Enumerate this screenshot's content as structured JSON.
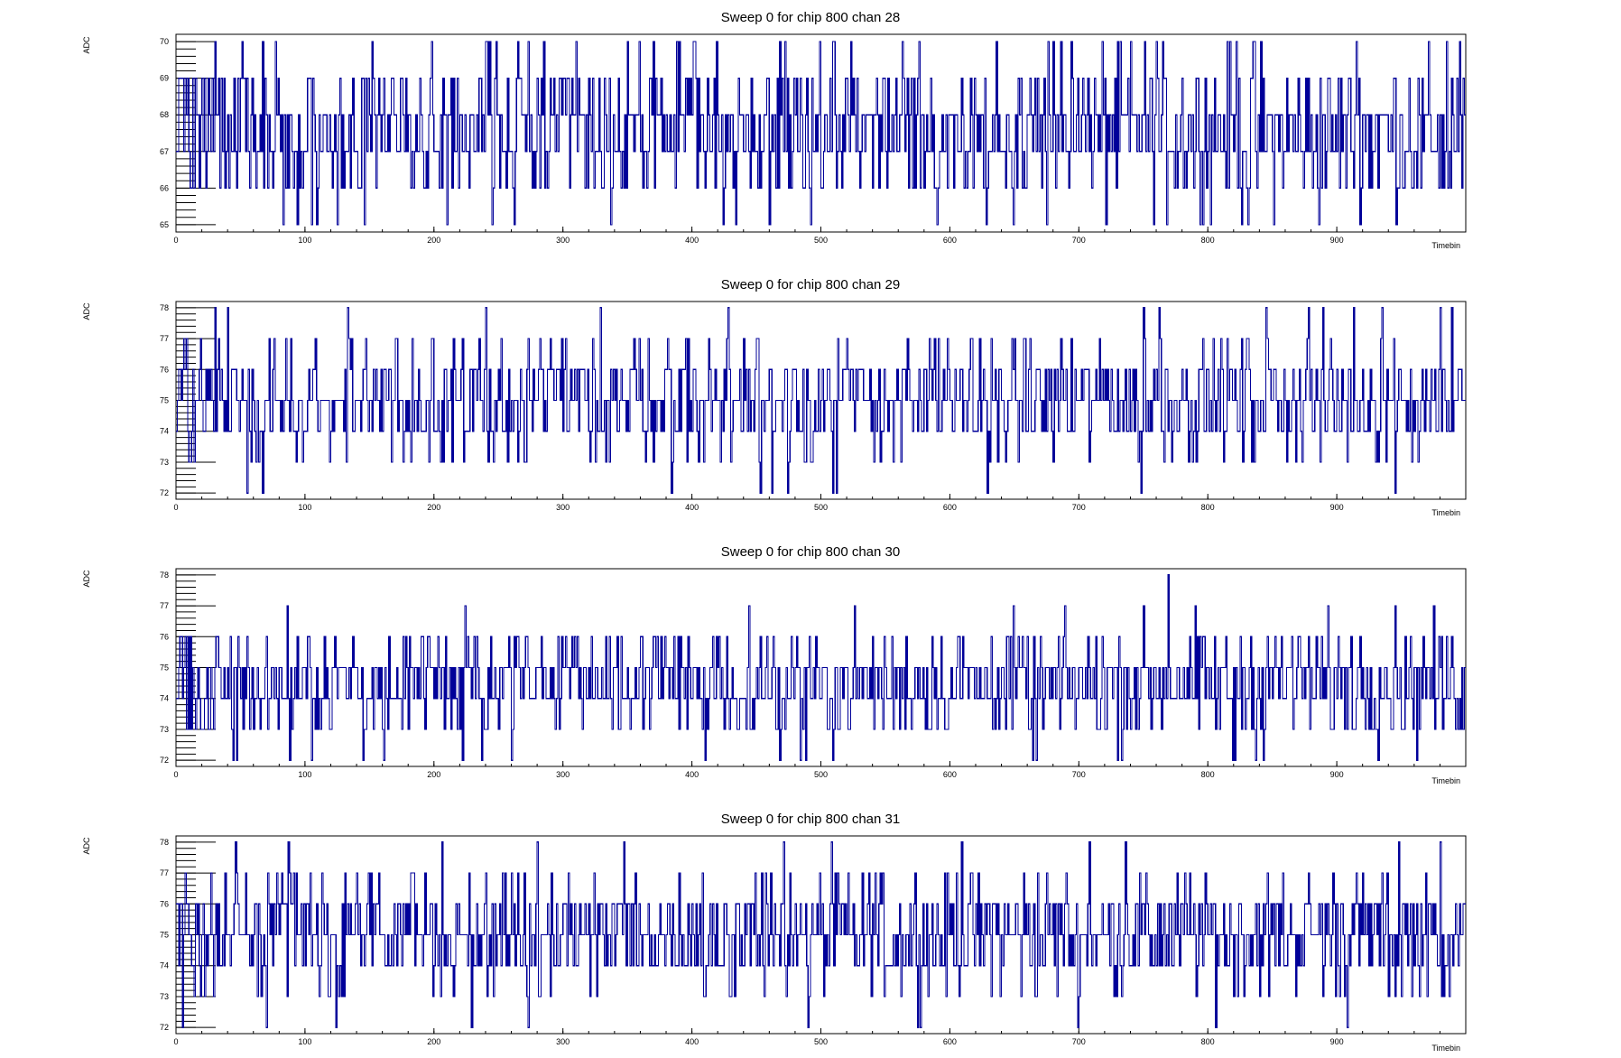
{
  "chart_data": [
    {
      "type": "line",
      "title": "Sweep 0 for chip 800 chan 28",
      "xlabel": "Timebin",
      "ylabel": "ADC",
      "xlim": [
        0,
        1000
      ],
      "ylim": [
        64.8,
        70.2
      ],
      "xticks": [
        0,
        100,
        200,
        300,
        400,
        500,
        600,
        700,
        800,
        900
      ],
      "yticks": [
        65,
        66,
        67,
        68,
        69,
        70
      ],
      "baseline": 67.5,
      "noise": 1.1,
      "min": 65,
      "max": 70,
      "highlights": [
        [
          30,
          70
        ],
        [
          35,
          69
        ],
        [
          77,
          70
        ],
        [
          105,
          65
        ],
        [
          198,
          70
        ],
        [
          241,
          70
        ],
        [
          243,
          70
        ],
        [
          248,
          70
        ],
        [
          262,
          65
        ],
        [
          285,
          70
        ],
        [
          388,
          70
        ],
        [
          390,
          70
        ],
        [
          419,
          70
        ],
        [
          468,
          70
        ],
        [
          509,
          70
        ],
        [
          563,
          70
        ],
        [
          576,
          70
        ],
        [
          590,
          65
        ],
        [
          636,
          70
        ],
        [
          686,
          70
        ],
        [
          694,
          70
        ],
        [
          760,
          70
        ],
        [
          822,
          70
        ],
        [
          831,
          65
        ],
        [
          915,
          70
        ],
        [
          985,
          70
        ]
      ],
      "color": "#000099",
      "seed": 28
    },
    {
      "type": "line",
      "title": "Sweep 0 for chip 800 chan 29",
      "xlabel": "Timebin",
      "ylabel": "ADC",
      "xlim": [
        0,
        1000
      ],
      "ylim": [
        71.8,
        78.2
      ],
      "xticks": [
        0,
        100,
        200,
        300,
        400,
        500,
        600,
        700,
        800,
        900
      ],
      "yticks": [
        72,
        73,
        74,
        75,
        76,
        77,
        78
      ],
      "baseline": 75,
      "noise": 1.0,
      "min": 72,
      "max": 78,
      "highlights": [
        [
          30,
          78
        ],
        [
          40,
          78
        ],
        [
          55,
          72
        ],
        [
          67,
          72
        ],
        [
          133,
          78
        ],
        [
          329,
          78
        ],
        [
          428,
          78
        ],
        [
          453,
          72
        ],
        [
          462,
          72
        ],
        [
          474,
          72
        ],
        [
          509,
          72
        ],
        [
          512,
          72
        ],
        [
          748,
          72
        ],
        [
          750,
          78
        ],
        [
          762,
          78
        ],
        [
          845,
          78
        ],
        [
          878,
          78
        ],
        [
          935,
          78
        ],
        [
          980,
          78
        ],
        [
          989,
          78
        ]
      ],
      "color": "#000099",
      "seed": 29
    },
    {
      "type": "line",
      "title": "Sweep 0 for chip 800 chan 30",
      "xlabel": "Timebin",
      "ylabel": "ADC",
      "xlim": [
        0,
        1000
      ],
      "ylim": [
        71.8,
        78.2
      ],
      "xticks": [
        0,
        100,
        200,
        300,
        400,
        500,
        600,
        700,
        800,
        900
      ],
      "yticks": [
        72,
        73,
        74,
        75,
        76,
        77,
        78
      ],
      "baseline": 74.5,
      "noise": 0.9,
      "min": 72,
      "max": 78,
      "highlights": [
        [
          105,
          72
        ],
        [
          222,
          72
        ],
        [
          468,
          72
        ],
        [
          509,
          72
        ],
        [
          664,
          72
        ],
        [
          667,
          72
        ],
        [
          730,
          72
        ],
        [
          769,
          78
        ],
        [
          819,
          72
        ],
        [
          821,
          72
        ],
        [
          843,
          72
        ],
        [
          962,
          72
        ]
      ],
      "color": "#000099",
      "seed": 30
    },
    {
      "type": "line",
      "title": "Sweep 0 for chip 800 chan 31",
      "xlabel": "Timebin",
      "ylabel": "ADC",
      "xlim": [
        0,
        1000
      ],
      "ylim": [
        71.8,
        78.2
      ],
      "xticks": [
        0,
        100,
        200,
        300,
        400,
        500,
        600,
        700,
        800,
        900
      ],
      "yticks": [
        72,
        73,
        74,
        75,
        76,
        77,
        78
      ],
      "baseline": 75,
      "noise": 1.0,
      "min": 72,
      "max": 78,
      "highlights": [
        [
          5,
          72
        ],
        [
          70,
          72
        ],
        [
          87,
          78
        ],
        [
          124,
          72
        ],
        [
          206,
          78
        ],
        [
          229,
          72
        ],
        [
          347,
          78
        ],
        [
          471,
          78
        ],
        [
          490,
          72
        ],
        [
          508,
          78
        ],
        [
          609,
          78
        ],
        [
          708,
          78
        ],
        [
          736,
          78
        ],
        [
          908,
          72
        ],
        [
          948,
          78
        ],
        [
          980,
          78
        ]
      ],
      "color": "#000099",
      "seed": 31
    }
  ]
}
